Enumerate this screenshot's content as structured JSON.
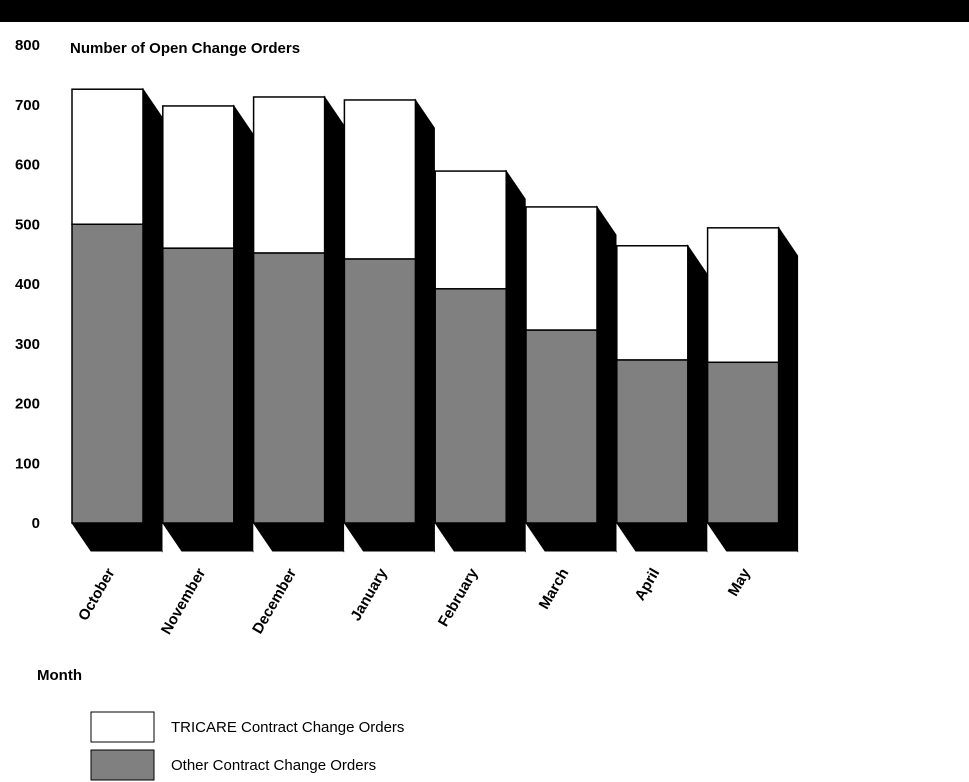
{
  "chart_data": {
    "type": "bar",
    "stacked": true,
    "three_d": true,
    "title": "Number of Open Change Orders",
    "xlabel": "Month",
    "ylabel": "",
    "categories": [
      "October",
      "November",
      "December",
      "January",
      "February",
      "March",
      "April",
      "May"
    ],
    "series": [
      {
        "name": "Other Contract Change Orders",
        "color": "#808080",
        "values": [
          500,
          460,
          452,
          442,
          392,
          323,
          273,
          269
        ]
      },
      {
        "name": "TRICARE Contract Change Orders",
        "color": "#ffffff",
        "values": [
          226,
          238,
          261,
          266,
          197,
          206,
          191,
          225
        ]
      }
    ],
    "ylim": [
      0,
      800
    ],
    "yticks": [
      0,
      100,
      200,
      300,
      400,
      500,
      600,
      700,
      800
    ],
    "grid": false,
    "legend_position": "bottom-left"
  }
}
